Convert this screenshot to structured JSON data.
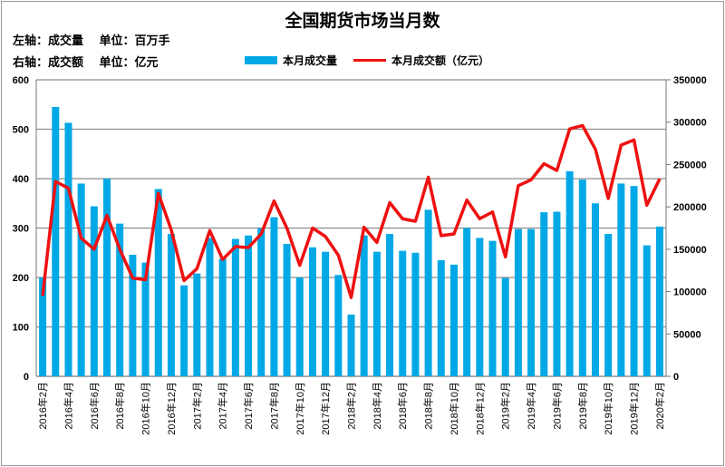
{
  "chart_data": {
    "type": "bar+line",
    "title": "全国期货市场当月数",
    "notes": [
      "左轴：成交量　 单位：百万手",
      "右轴：成交额　 单位：亿元"
    ],
    "legend": [
      "本月成交量",
      "本月成交额（亿元）"
    ],
    "colors": {
      "bar": "#00a8e6",
      "line": "#ee1111"
    },
    "y_left": {
      "min": 0,
      "max": 600,
      "ticks": [
        0,
        100,
        200,
        300,
        400,
        500,
        600
      ]
    },
    "y_right": {
      "min": 0,
      "max": 350000,
      "ticks": [
        0,
        50000,
        100000,
        150000,
        200000,
        250000,
        300000,
        350000
      ]
    },
    "x_tick_labels": [
      "2016年2月",
      "2016年4月",
      "2016年6月",
      "2016年8月",
      "2016年10月",
      "2016年12月",
      "2017年2月",
      "2017年4月",
      "2017年6月",
      "2017年8月",
      "2017年10月",
      "2017年12月",
      "2018年2月",
      "2018年4月",
      "2018年6月",
      "2018年8月",
      "2018年10月",
      "2018年12月",
      "2019年2月",
      "2019年4月",
      "2019年6月",
      "2019年8月",
      "2019年10月",
      "2019年12月",
      "2020年2月"
    ],
    "series": [
      {
        "name": "本月成交量",
        "axis": "left",
        "type": "bar",
        "values": [
          200,
          545,
          513,
          390,
          344,
          400,
          309,
          246,
          230,
          379,
          288,
          184,
          208,
          280,
          238,
          278,
          285,
          300,
          322,
          268,
          200,
          261,
          252,
          205,
          125,
          285,
          252,
          288,
          254,
          250,
          337,
          235,
          226,
          300,
          280,
          274,
          199,
          298,
          298,
          332,
          333,
          415,
          398,
          350,
          288,
          390,
          385,
          265,
          303
        ]
      },
      {
        "name": "本月成交额（亿元）",
        "axis": "right",
        "type": "line",
        "values": [
          95000,
          230000,
          222000,
          163000,
          150000,
          190000,
          150000,
          116000,
          114000,
          216000,
          173000,
          113000,
          127000,
          172000,
          138000,
          153000,
          152000,
          168000,
          207000,
          175000,
          131000,
          175000,
          165000,
          143000,
          93000,
          176000,
          158000,
          205000,
          186000,
          183000,
          235000,
          166000,
          168000,
          208000,
          186000,
          194000,
          141000,
          225000,
          232000,
          251000,
          243000,
          292000,
          296000,
          268000,
          210000,
          273000,
          279000,
          202000,
          233000
        ]
      }
    ]
  }
}
